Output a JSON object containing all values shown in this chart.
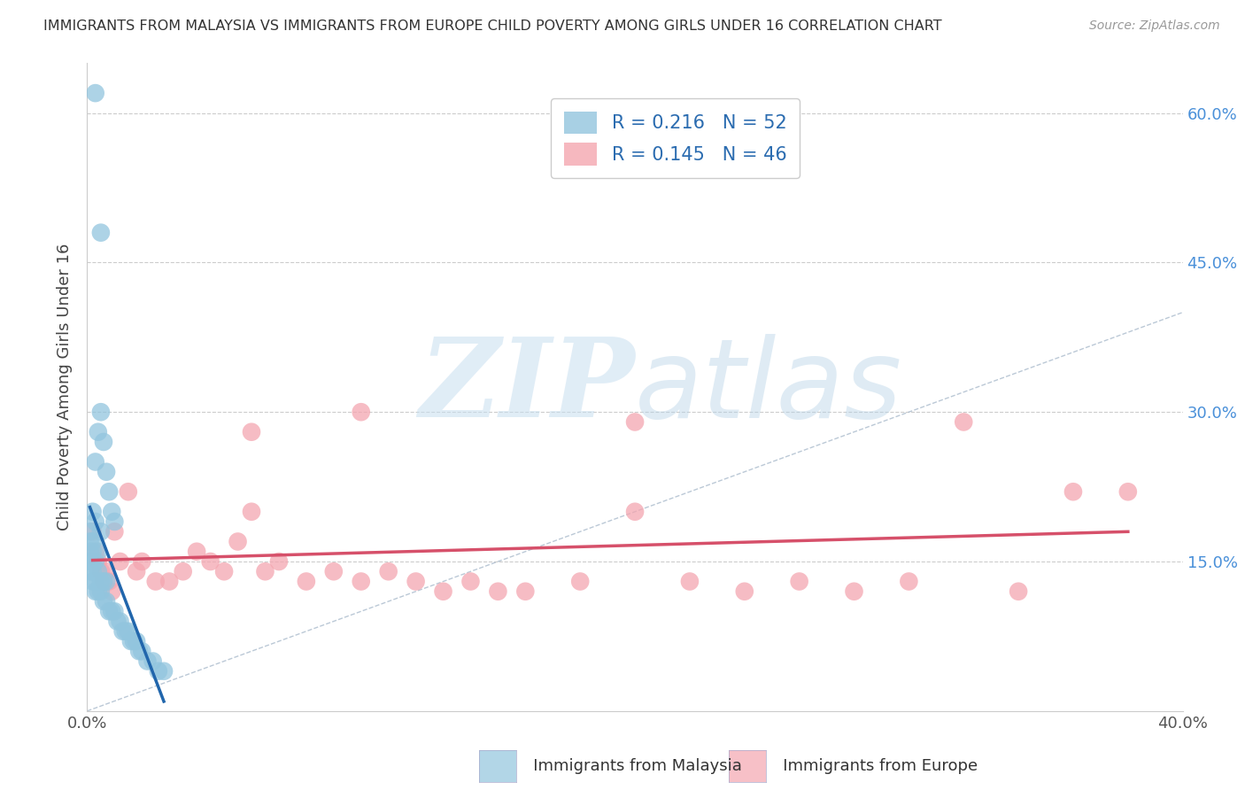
{
  "title": "IMMIGRANTS FROM MALAYSIA VS IMMIGRANTS FROM EUROPE CHILD POVERTY AMONG GIRLS UNDER 16 CORRELATION CHART",
  "source": "Source: ZipAtlas.com",
  "ylabel": "Child Poverty Among Girls Under 16",
  "malaysia_color": "#92c5de",
  "europe_color": "#f4a6b0",
  "malaysia_line_color": "#2166ac",
  "europe_line_color": "#d6506a",
  "diag_color": "#aaaacc",
  "malaysia_R": 0.216,
  "malaysia_N": 52,
  "europe_R": 0.145,
  "europe_N": 46,
  "xlim": [
    0.0,
    0.4
  ],
  "ylim": [
    0.0,
    0.65
  ],
  "malaysia_x": [
    0.001,
    0.001,
    0.001,
    0.001,
    0.001,
    0.002,
    0.002,
    0.002,
    0.002,
    0.002,
    0.002,
    0.003,
    0.003,
    0.003,
    0.003,
    0.003,
    0.004,
    0.004,
    0.004,
    0.004,
    0.005,
    0.005,
    0.005,
    0.005,
    0.006,
    0.006,
    0.006,
    0.007,
    0.007,
    0.007,
    0.008,
    0.008,
    0.009,
    0.009,
    0.01,
    0.01,
    0.011,
    0.012,
    0.013,
    0.014,
    0.015,
    0.016,
    0.017,
    0.018,
    0.019,
    0.02,
    0.022,
    0.024,
    0.026,
    0.028,
    0.003,
    0.005
  ],
  "malaysia_y": [
    0.14,
    0.15,
    0.16,
    0.17,
    0.18,
    0.13,
    0.14,
    0.15,
    0.16,
    0.17,
    0.2,
    0.12,
    0.13,
    0.15,
    0.19,
    0.25,
    0.12,
    0.14,
    0.16,
    0.28,
    0.12,
    0.13,
    0.18,
    0.3,
    0.11,
    0.13,
    0.27,
    0.11,
    0.13,
    0.24,
    0.1,
    0.22,
    0.1,
    0.2,
    0.1,
    0.19,
    0.09,
    0.09,
    0.08,
    0.08,
    0.08,
    0.07,
    0.07,
    0.07,
    0.06,
    0.06,
    0.05,
    0.05,
    0.04,
    0.04,
    0.62,
    0.48
  ],
  "europe_x": [
    0.002,
    0.003,
    0.004,
    0.005,
    0.006,
    0.007,
    0.008,
    0.009,
    0.01,
    0.012,
    0.015,
    0.018,
    0.02,
    0.025,
    0.03,
    0.035,
    0.04,
    0.045,
    0.05,
    0.055,
    0.06,
    0.065,
    0.07,
    0.08,
    0.09,
    0.1,
    0.11,
    0.12,
    0.13,
    0.14,
    0.15,
    0.16,
    0.18,
    0.2,
    0.22,
    0.24,
    0.26,
    0.28,
    0.3,
    0.32,
    0.34,
    0.36,
    0.06,
    0.1,
    0.2,
    0.38
  ],
  "europe_y": [
    0.18,
    0.16,
    0.15,
    0.14,
    0.13,
    0.14,
    0.13,
    0.12,
    0.18,
    0.15,
    0.22,
    0.14,
    0.15,
    0.13,
    0.13,
    0.14,
    0.16,
    0.15,
    0.14,
    0.17,
    0.2,
    0.14,
    0.15,
    0.13,
    0.14,
    0.13,
    0.14,
    0.13,
    0.12,
    0.13,
    0.12,
    0.12,
    0.13,
    0.29,
    0.13,
    0.12,
    0.13,
    0.12,
    0.13,
    0.29,
    0.12,
    0.22,
    0.28,
    0.3,
    0.2,
    0.22
  ],
  "watermark_zip": "ZIP",
  "watermark_atlas": "atlas",
  "grid_color": "#cccccc",
  "background_color": "#ffffff",
  "legend_R_color": "#2166ac",
  "legend_N_color": "#e05080"
}
